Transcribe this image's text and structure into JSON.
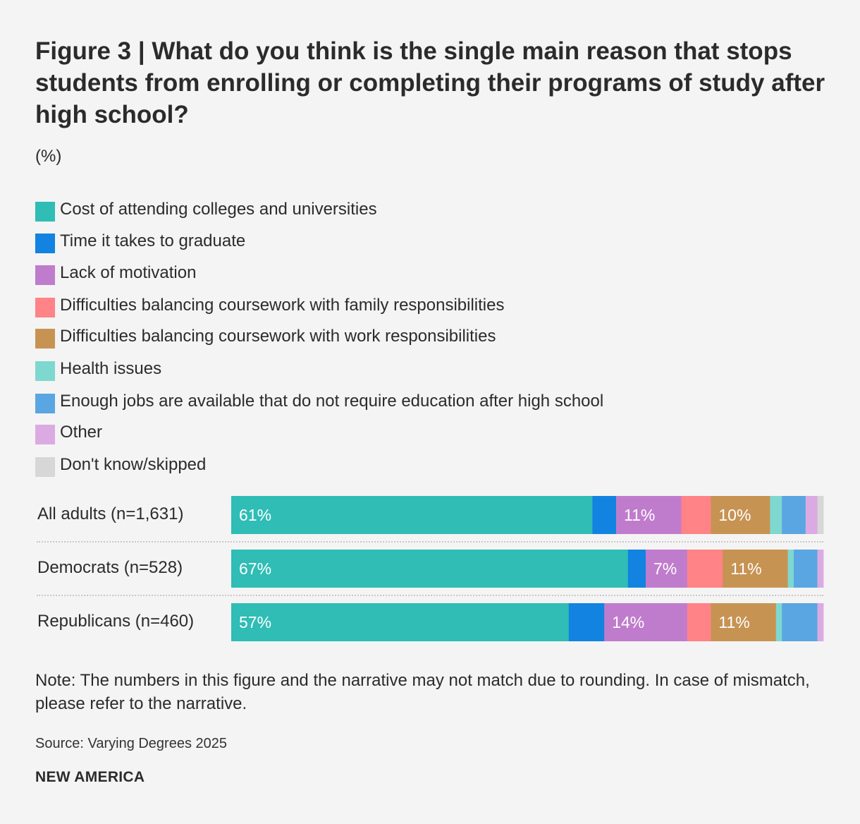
{
  "header": {
    "title": "Figure 3 | What do you think is the single main reason that stops students from enrolling or completing their programs of study after high school?",
    "subtitle": "(%)"
  },
  "footer": {
    "note": "Note: The numbers in this figure and the narrative may not match due to rounding. In case of mismatch, please refer to the narrative.",
    "source": "Source: Varying Degrees 2025",
    "brand": "NEW AMERICA"
  },
  "chart_data": {
    "type": "bar",
    "orientation": "horizontal",
    "stacked": true,
    "categories": [
      "All adults (n=1,631)",
      "Democrats (n=528)",
      "Republicans (n=460)"
    ],
    "xlim": [
      0,
      100
    ],
    "legend_position": "top",
    "grid": false,
    "series": [
      {
        "name": "Cost of attending colleges and universities",
        "color": "#2fbdb5",
        "values": [
          61,
          67,
          57
        ],
        "labels": [
          "61%",
          "67%",
          "57%"
        ]
      },
      {
        "name": "Time it takes to graduate",
        "color": "#1283e0",
        "values": [
          4,
          3,
          6
        ],
        "labels": [
          "",
          "",
          ""
        ]
      },
      {
        "name": "Lack of motivation",
        "color": "#c07ccc",
        "values": [
          11,
          7,
          14
        ],
        "labels": [
          "11%",
          "7%",
          "14%"
        ]
      },
      {
        "name": "Difficulties balancing coursework with family responsibilities",
        "color": "#ff8387",
        "values": [
          5,
          6,
          4
        ],
        "labels": [
          "",
          "",
          ""
        ]
      },
      {
        "name": "Difficulties balancing coursework with work responsibilities",
        "color": "#c79353",
        "values": [
          10,
          11,
          11
        ],
        "labels": [
          "10%",
          "11%",
          "11%"
        ]
      },
      {
        "name": "Health issues",
        "color": "#7ed8cf",
        "values": [
          2,
          1,
          1
        ],
        "labels": [
          "",
          "",
          ""
        ]
      },
      {
        "name": "Enough jobs are available that do not require education after high school",
        "color": "#5aa6e2",
        "values": [
          4,
          4,
          6
        ],
        "labels": [
          "",
          "",
          ""
        ]
      },
      {
        "name": "Other",
        "color": "#dcaae2",
        "values": [
          2,
          1,
          1
        ],
        "labels": [
          "",
          "",
          ""
        ]
      },
      {
        "name": "Don't know/skipped",
        "color": "#d7d7d7",
        "values": [
          1,
          0,
          0
        ],
        "labels": [
          "",
          "",
          ""
        ]
      }
    ]
  }
}
